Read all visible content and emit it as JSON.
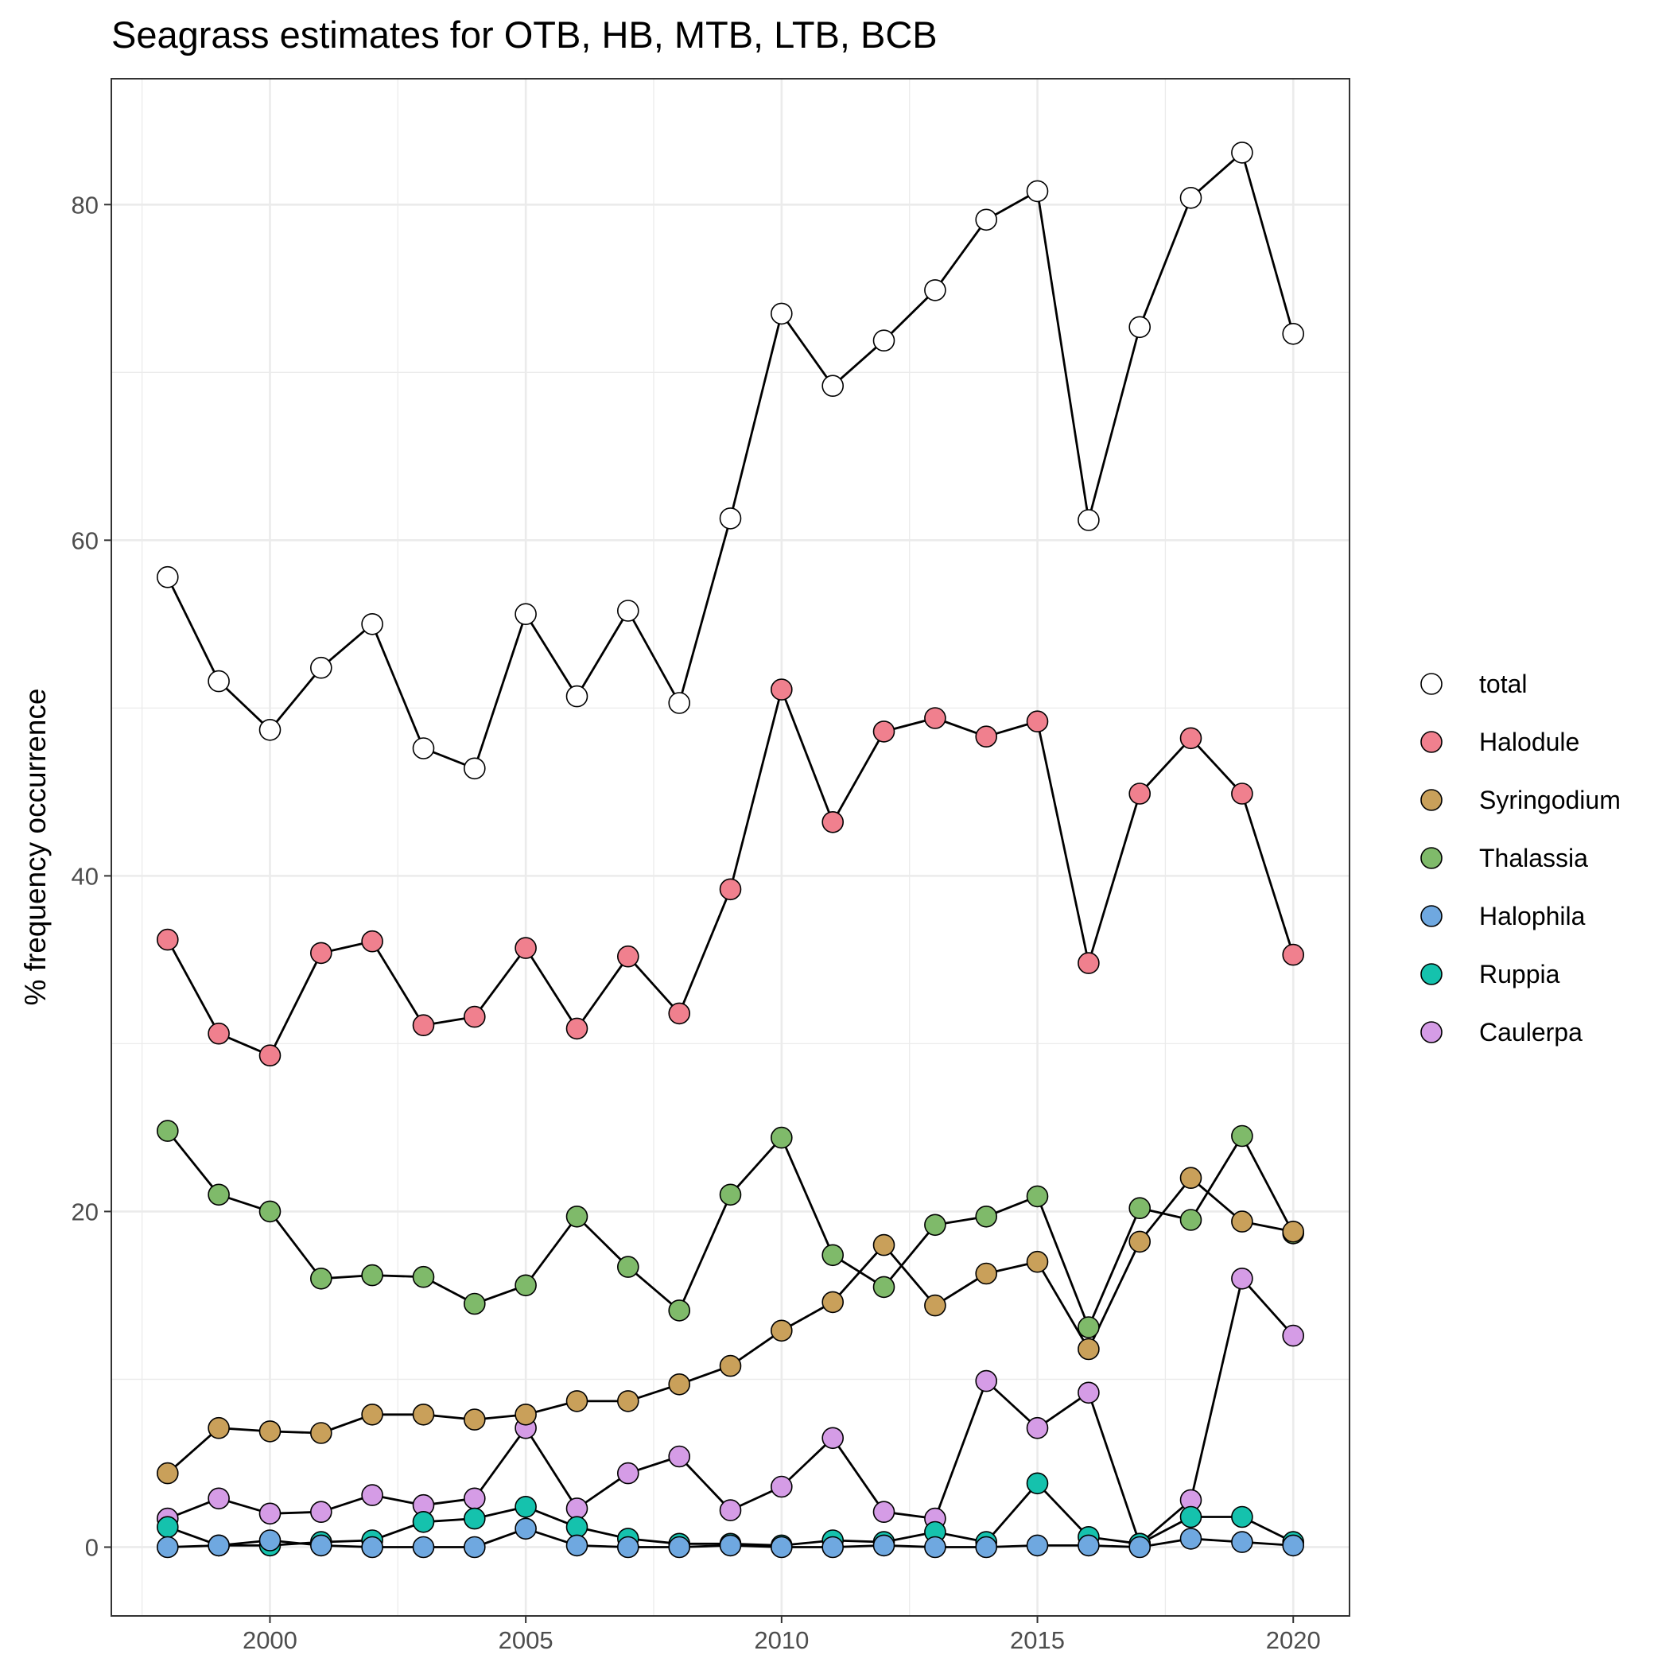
{
  "chart_data": {
    "type": "line",
    "title": "Seagrass estimates for OTB, HB, MTB, LTB, BCB",
    "xlabel": "",
    "ylabel": "% frequency occurrence",
    "xlim": [
      1996.9,
      2021.1
    ],
    "ylim": [
      -4.1,
      87.5
    ],
    "x_ticks": [
      2000,
      2005,
      2010,
      2015,
      2020
    ],
    "y_ticks": [
      0,
      20,
      40,
      60,
      80
    ],
    "grid": true,
    "legend_position": "right",
    "x": [
      1998,
      1999,
      2000,
      2001,
      2002,
      2003,
      2004,
      2005,
      2006,
      2007,
      2008,
      2009,
      2010,
      2011,
      2012,
      2013,
      2014,
      2015,
      2016,
      2017,
      2018,
      2019,
      2020
    ],
    "series": [
      {
        "name": "total",
        "color": "#ffffff",
        "values": [
          57.8,
          51.6,
          48.7,
          52.4,
          55.0,
          47.6,
          46.4,
          55.6,
          50.7,
          55.8,
          50.3,
          61.3,
          73.5,
          69.2,
          71.9,
          74.9,
          79.1,
          80.8,
          61.2,
          72.7,
          80.4,
          83.1,
          72.3
        ]
      },
      {
        "name": "Halodule",
        "color": "#f0808e",
        "values": [
          36.2,
          30.6,
          29.3,
          35.4,
          36.1,
          31.1,
          31.6,
          35.7,
          30.9,
          35.2,
          31.8,
          39.2,
          51.1,
          43.2,
          48.6,
          49.4,
          48.3,
          49.2,
          34.8,
          44.9,
          48.2,
          44.9,
          35.3
        ]
      },
      {
        "name": "Syringodium",
        "color": "#c9a05a",
        "values": [
          4.4,
          7.1,
          6.9,
          6.8,
          7.9,
          7.9,
          7.6,
          7.9,
          8.7,
          8.7,
          9.7,
          10.8,
          12.9,
          14.6,
          18.0,
          14.4,
          16.3,
          17.0,
          11.8,
          18.2,
          22.0,
          19.4,
          18.8
        ]
      },
      {
        "name": "Thalassia",
        "color": "#7fba6a",
        "values": [
          24.8,
          21.0,
          20.0,
          16.0,
          16.2,
          16.1,
          14.5,
          15.6,
          19.7,
          16.7,
          14.1,
          21.0,
          24.4,
          17.4,
          15.5,
          19.2,
          19.7,
          20.9,
          13.1,
          20.2,
          19.5,
          24.5,
          18.7
        ]
      },
      {
        "name": "Halophila",
        "color": "#6fa8e0",
        "values": [
          0.0,
          0.1,
          0.4,
          0.1,
          0.0,
          0.0,
          0.0,
          1.1,
          0.1,
          0.0,
          0.0,
          0.1,
          0.0,
          0.0,
          0.1,
          0.0,
          0.0,
          0.1,
          0.1,
          0.0,
          0.5,
          0.3,
          0.1
        ]
      },
      {
        "name": "Ruppia",
        "color": "#15c2ad",
        "values": [
          1.2,
          0.1,
          0.1,
          0.3,
          0.4,
          1.5,
          1.7,
          2.4,
          1.2,
          0.5,
          0.2,
          0.2,
          0.1,
          0.4,
          0.3,
          0.9,
          0.3,
          3.8,
          0.6,
          0.2,
          1.8,
          1.8,
          0.3
        ]
      },
      {
        "name": "Caulerpa",
        "color": "#d59ce6",
        "values": [
          1.7,
          2.9,
          2.0,
          2.1,
          3.1,
          2.5,
          2.9,
          7.1,
          2.3,
          4.4,
          5.4,
          2.2,
          3.6,
          6.5,
          2.1,
          1.7,
          9.9,
          7.1,
          9.2,
          0.2,
          2.8,
          16.0,
          12.6
        ]
      }
    ]
  }
}
